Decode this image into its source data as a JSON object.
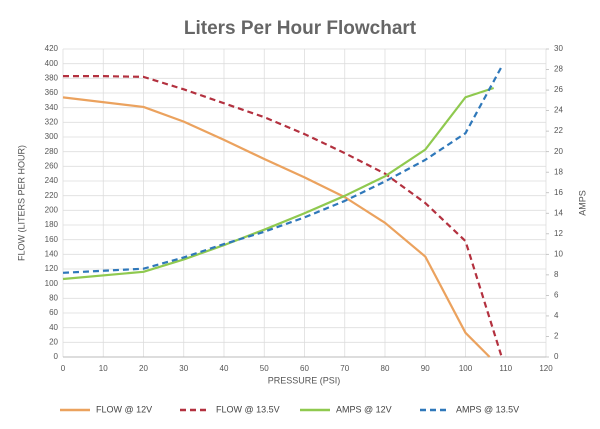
{
  "chart_data": {
    "type": "line",
    "title": "Liters Per Hour Flowchart",
    "x_label": "PRESSURE (PSI)",
    "y_label": "FLOW (LITERS PER HOUR)",
    "y2_label": "AMPS",
    "xlim": [
      0,
      120
    ],
    "xticks": [
      0,
      10,
      20,
      30,
      40,
      50,
      60,
      70,
      80,
      90,
      100,
      110,
      120
    ],
    "ylim": [
      0,
      420
    ],
    "yticks": [
      0,
      20,
      40,
      60,
      80,
      100,
      120,
      140,
      160,
      180,
      200,
      220,
      240,
      260,
      280,
      300,
      320,
      340,
      360,
      380,
      400,
      420
    ],
    "y2lim": [
      0,
      30
    ],
    "y2ticks": [
      0,
      2,
      4,
      6,
      8,
      10,
      12,
      14,
      16,
      18,
      20,
      22,
      24,
      26,
      28,
      30
    ],
    "grid": true,
    "legend": "bottom",
    "series": [
      {
        "name": "FLOW @ 12V",
        "color": "#eba25e",
        "dashed": false,
        "x": [
          0,
          20,
          30,
          40,
          50,
          60,
          70,
          80,
          90,
          100,
          106
        ],
        "values": [
          354,
          341,
          321,
          296,
          270,
          245,
          218,
          183,
          137,
          33,
          0
        ]
      },
      {
        "name": "FLOW @ 13.5V",
        "color": "#b3313f",
        "dashed": true,
        "x": [
          0,
          10,
          20,
          30,
          40,
          50,
          60,
          70,
          80,
          90,
          100,
          109
        ],
        "values": [
          383,
          383,
          382,
          365,
          346,
          327,
          304,
          278,
          250,
          210,
          158,
          0
        ]
      },
      {
        "name": "AMPS @ 12V",
        "color": "#8fc94f",
        "dashed": false,
        "axis": "y2",
        "x": [
          0,
          20,
          30,
          40,
          50,
          60,
          70,
          80,
          90,
          100,
          107
        ],
        "values": [
          7.6,
          8.3,
          9.5,
          10.9,
          12.4,
          14,
          15.7,
          17.6,
          20.2,
          25.3,
          26.2
        ]
      },
      {
        "name": "AMPS @ 13.5V",
        "color": "#2f78ba",
        "dashed": true,
        "axis": "y2",
        "x": [
          0,
          20,
          30,
          40,
          50,
          60,
          70,
          80,
          90,
          100,
          109
        ],
        "values": [
          8.2,
          8.6,
          9.7,
          11,
          12.2,
          13.6,
          15.2,
          17.1,
          19.2,
          21.8,
          28.3
        ]
      }
    ]
  }
}
